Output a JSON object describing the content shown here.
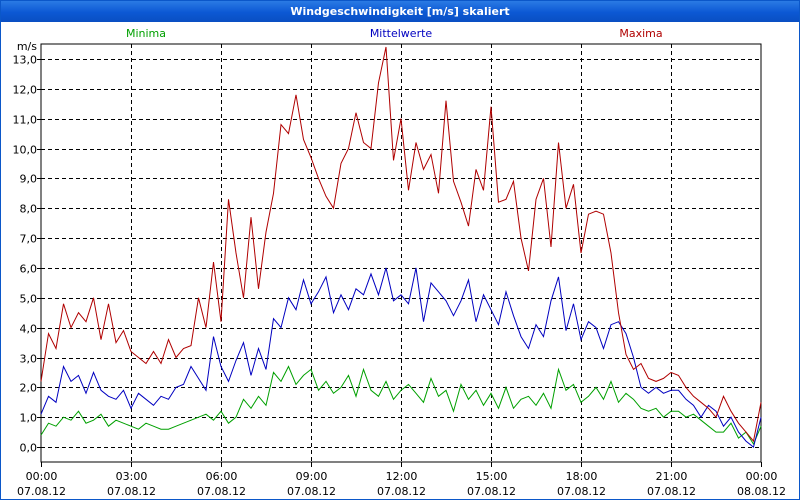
{
  "window": {
    "title": "Windgeschwindigkeit [m/s] skaliert"
  },
  "chart_data": {
    "type": "line",
    "title": "Windgeschwindigkeit [m/s] skaliert",
    "ylabel": "m/s",
    "xlabel": "",
    "ylim": [
      -0.5,
      13.5
    ],
    "xlim": [
      0,
      24
    ],
    "grid": true,
    "legend_position": "top",
    "y_ticks": [
      "0,0",
      "1,0",
      "2,0",
      "3,0",
      "4,0",
      "5,0",
      "6,0",
      "7,0",
      "8,0",
      "9,0",
      "10,0",
      "11,0",
      "12,0",
      "13,0"
    ],
    "x_ticks": [
      {
        "time": "00:00",
        "date": "07.08.12"
      },
      {
        "time": "03:00",
        "date": "07.08.12"
      },
      {
        "time": "06:00",
        "date": "07.08.12"
      },
      {
        "time": "09:00",
        "date": "07.08.12"
      },
      {
        "time": "12:00",
        "date": "07.08.12"
      },
      {
        "time": "15:00",
        "date": "07.08.12"
      },
      {
        "time": "18:00",
        "date": "07.08.12"
      },
      {
        "time": "21:00",
        "date": "07.08.12"
      },
      {
        "time": "00:00",
        "date": "08.08.12"
      }
    ],
    "series": [
      {
        "name": "Minima",
        "color": "#00a000",
        "x": [
          0,
          0.25,
          0.5,
          0.75,
          1,
          1.25,
          1.5,
          1.75,
          2,
          2.25,
          2.5,
          2.75,
          3,
          3.25,
          3.5,
          3.75,
          4,
          4.25,
          4.5,
          4.75,
          5,
          5.25,
          5.5,
          5.75,
          6,
          6.25,
          6.5,
          6.75,
          7,
          7.25,
          7.5,
          7.75,
          8,
          8.25,
          8.5,
          8.75,
          9,
          9.25,
          9.5,
          9.75,
          10,
          10.25,
          10.5,
          10.75,
          11,
          11.25,
          11.5,
          11.75,
          12,
          12.25,
          12.5,
          12.75,
          13,
          13.25,
          13.5,
          13.75,
          14,
          14.25,
          14.5,
          14.75,
          15,
          15.25,
          15.5,
          15.75,
          16,
          16.25,
          16.5,
          16.75,
          17,
          17.25,
          17.5,
          17.75,
          18,
          18.25,
          18.5,
          18.75,
          19,
          19.25,
          19.5,
          19.75,
          20,
          20.25,
          20.5,
          20.75,
          21,
          21.25,
          21.5,
          21.75,
          22,
          22.25,
          22.5,
          22.75,
          23,
          23.25,
          23.5,
          23.75,
          24
        ],
        "values": [
          0.4,
          0.8,
          0.7,
          1.0,
          0.9,
          1.2,
          0.8,
          0.9,
          1.1,
          0.7,
          0.9,
          0.8,
          0.7,
          0.6,
          0.8,
          0.7,
          0.6,
          0.6,
          0.7,
          0.8,
          0.9,
          1.0,
          1.1,
          0.9,
          1.2,
          0.8,
          1.0,
          1.6,
          1.3,
          1.7,
          1.4,
          2.5,
          2.2,
          2.7,
          2.1,
          2.4,
          2.6,
          1.9,
          2.2,
          1.8,
          2.0,
          2.4,
          1.7,
          2.6,
          1.9,
          1.7,
          2.2,
          1.6,
          1.9,
          2.1,
          1.8,
          1.5,
          2.3,
          1.7,
          1.9,
          1.2,
          2.1,
          1.6,
          1.9,
          1.4,
          1.8,
          1.3,
          2.0,
          1.3,
          1.6,
          1.7,
          1.4,
          1.8,
          1.3,
          2.6,
          1.9,
          2.1,
          1.5,
          1.7,
          2.0,
          1.6,
          2.2,
          1.5,
          1.8,
          1.6,
          1.3,
          1.2,
          1.3,
          1.0,
          1.2,
          1.2,
          1.0,
          1.1,
          0.9,
          0.7,
          0.5,
          0.5,
          0.8,
          0.3,
          0.5,
          0.1,
          0.7
        ]
      },
      {
        "name": "Mittelwerte",
        "color": "#0000c0",
        "x": [
          0,
          0.25,
          0.5,
          0.75,
          1,
          1.25,
          1.5,
          1.75,
          2,
          2.25,
          2.5,
          2.75,
          3,
          3.25,
          3.5,
          3.75,
          4,
          4.25,
          4.5,
          4.75,
          5,
          5.25,
          5.5,
          5.75,
          6,
          6.25,
          6.5,
          6.75,
          7,
          7.25,
          7.5,
          7.75,
          8,
          8.25,
          8.5,
          8.75,
          9,
          9.25,
          9.5,
          9.75,
          10,
          10.25,
          10.5,
          10.75,
          11,
          11.25,
          11.5,
          11.75,
          12,
          12.25,
          12.5,
          12.75,
          13,
          13.25,
          13.5,
          13.75,
          14,
          14.25,
          14.5,
          14.75,
          15,
          15.25,
          15.5,
          15.75,
          16,
          16.25,
          16.5,
          16.75,
          17,
          17.25,
          17.5,
          17.75,
          18,
          18.25,
          18.5,
          18.75,
          19,
          19.25,
          19.5,
          19.75,
          20,
          20.25,
          20.5,
          20.75,
          21,
          21.25,
          21.5,
          21.75,
          22,
          22.25,
          22.5,
          22.75,
          23,
          23.25,
          23.5,
          23.75,
          24
        ],
        "values": [
          1.1,
          1.7,
          1.5,
          2.7,
          2.2,
          2.4,
          1.8,
          2.5,
          1.9,
          1.7,
          1.6,
          1.9,
          1.3,
          1.8,
          1.6,
          1.4,
          1.7,
          1.6,
          2.0,
          2.1,
          2.7,
          2.3,
          1.9,
          3.7,
          2.7,
          2.2,
          2.9,
          3.5,
          2.4,
          3.3,
          2.6,
          4.3,
          4.0,
          5.0,
          4.6,
          5.6,
          4.8,
          5.2,
          5.7,
          4.5,
          5.1,
          4.6,
          5.3,
          5.1,
          5.8,
          5.1,
          6.0,
          4.9,
          5.1,
          4.8,
          6.0,
          4.2,
          5.5,
          5.2,
          4.9,
          4.4,
          4.9,
          5.6,
          4.2,
          5.1,
          4.6,
          4.1,
          5.2,
          4.4,
          3.7,
          3.3,
          4.1,
          3.7,
          4.9,
          5.7,
          3.9,
          4.8,
          3.6,
          4.2,
          4.0,
          3.3,
          4.1,
          4.2,
          3.8,
          3.0,
          2.0,
          1.8,
          2.0,
          1.8,
          1.9,
          1.9,
          1.6,
          1.4,
          1.0,
          1.4,
          1.2,
          0.7,
          1.0,
          0.5,
          0.2,
          0.0,
          1.0
        ]
      },
      {
        "name": "Maxima",
        "color": "#b00000",
        "x": [
          0,
          0.25,
          0.5,
          0.75,
          1,
          1.25,
          1.5,
          1.75,
          2,
          2.25,
          2.5,
          2.75,
          3,
          3.25,
          3.5,
          3.75,
          4,
          4.25,
          4.5,
          4.75,
          5,
          5.25,
          5.5,
          5.75,
          6,
          6.25,
          6.5,
          6.75,
          7,
          7.25,
          7.5,
          7.75,
          8,
          8.25,
          8.5,
          8.75,
          9,
          9.25,
          9.5,
          9.75,
          10,
          10.25,
          10.5,
          10.75,
          11,
          11.25,
          11.5,
          11.75,
          12,
          12.25,
          12.5,
          12.75,
          13,
          13.25,
          13.5,
          13.75,
          14,
          14.25,
          14.5,
          14.75,
          15,
          15.25,
          15.5,
          15.75,
          16,
          16.25,
          16.5,
          16.75,
          17,
          17.25,
          17.5,
          17.75,
          18,
          18.25,
          18.5,
          18.75,
          19,
          19.25,
          19.5,
          19.75,
          20,
          20.25,
          20.5,
          20.75,
          21,
          21.25,
          21.5,
          21.75,
          22,
          22.25,
          22.5,
          22.75,
          23,
          23.25,
          23.5,
          23.75,
          24
        ],
        "values": [
          2.2,
          3.8,
          3.3,
          4.8,
          4.0,
          4.5,
          4.2,
          5.0,
          3.6,
          4.8,
          3.5,
          3.9,
          3.2,
          3.0,
          2.8,
          3.2,
          2.8,
          3.6,
          3.0,
          3.3,
          3.4,
          5.0,
          4.0,
          6.2,
          4.2,
          8.3,
          6.5,
          5.0,
          7.7,
          5.3,
          7.2,
          8.5,
          10.8,
          10.5,
          11.8,
          10.3,
          9.7,
          9.0,
          8.4,
          8.0,
          9.5,
          10.0,
          11.2,
          10.2,
          10.0,
          12.2,
          13.4,
          9.6,
          11.0,
          8.6,
          10.2,
          9.3,
          9.8,
          8.5,
          11.6,
          8.9,
          8.2,
          7.4,
          9.3,
          8.6,
          11.4,
          8.2,
          8.3,
          8.9,
          7.0,
          5.9,
          8.3,
          9.0,
          6.7,
          10.2,
          8.0,
          8.8,
          6.5,
          7.8,
          7.9,
          7.8,
          6.5,
          4.5,
          3.1,
          2.6,
          2.8,
          2.3,
          2.2,
          2.3,
          2.5,
          2.4,
          2.0,
          1.7,
          1.5,
          1.3,
          1.0,
          1.7,
          1.2,
          0.8,
          0.5,
          0.2,
          1.5
        ]
      }
    ]
  }
}
